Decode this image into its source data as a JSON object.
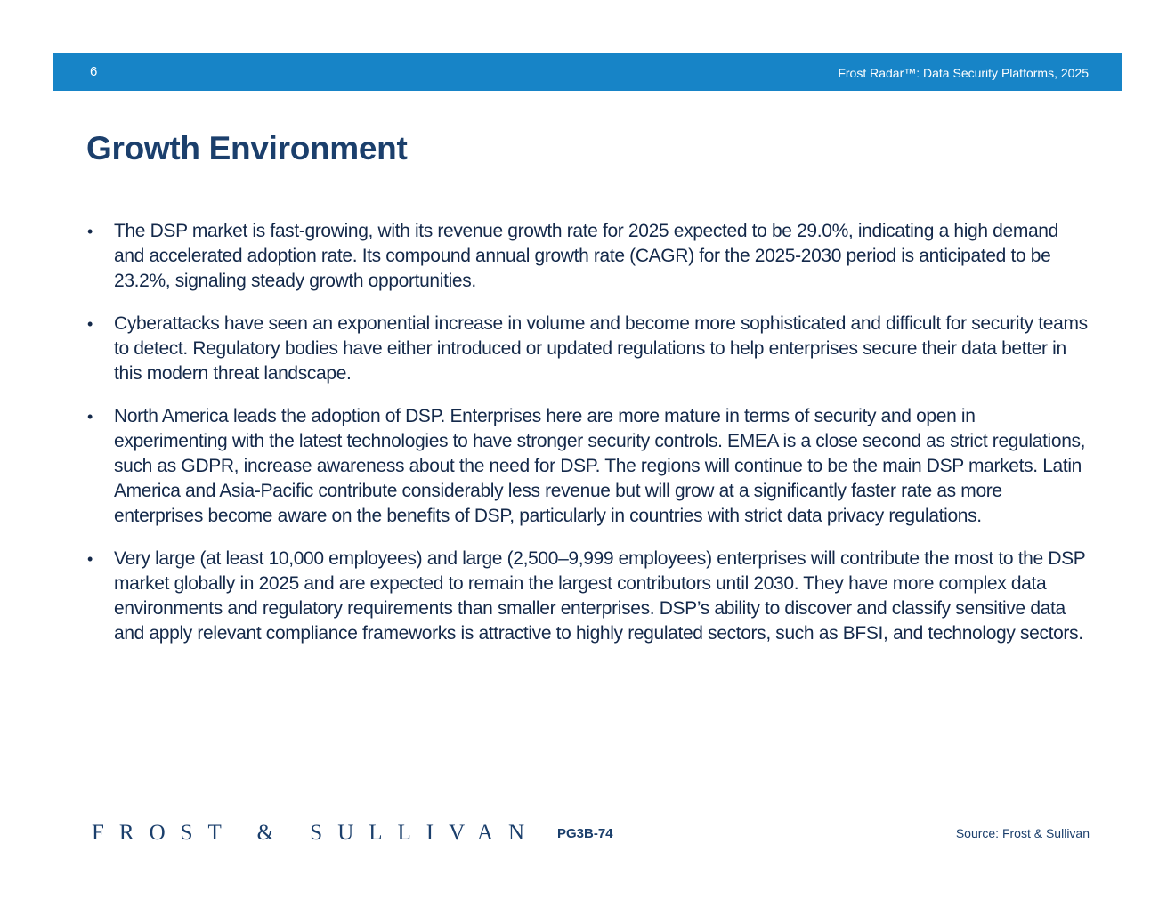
{
  "header": {
    "page_number": "6",
    "report_title": "Frost Radar™: Data Security Platforms, 2025",
    "bar_color": "#1784c7"
  },
  "main": {
    "heading": "Growth Environment",
    "bullet_symbol": "•",
    "bullets": [
      "The DSP market is fast-growing, with its revenue growth rate for 2025 expected to be 29.0%, indicating a high demand and accelerated adoption rate. Its compound annual growth rate (CAGR) for the 2025-2030 period is anticipated to be 23.2%, signaling steady growth opportunities.",
      "Cyberattacks have seen an exponential increase in volume and become more sophisticated and difficult for security teams to detect. Regulatory bodies have either introduced or updated regulations to help enterprises secure their data better in this modern threat landscape.",
      "North America leads the adoption of DSP. Enterprises here are more mature in terms of security and open in experimenting with the latest technologies to have stronger security controls. EMEA is a close second as strict regulations, such as GDPR, increase awareness about the need for DSP. The regions will continue to be the main DSP markets. Latin America and Asia-Pacific contribute considerably less revenue but will grow at a significantly faster rate as more enterprises become aware on the benefits of DSP, particularly in countries with strict data privacy regulations.",
      "Very large (at least 10,000 employees) and large (2,500–9,999 employees) enterprises will contribute the most to the DSP market globally in 2025 and are expected to remain the largest contributors until 2030. They have more complex data environments and regulatory requirements than smaller enterprises. DSP’s ability to discover and classify sensitive data and apply relevant compliance frameworks is attractive to highly regulated sectors, such as BFSI, and technology sectors."
    ]
  },
  "footer": {
    "logo_text": "FROST & SULLIVAN",
    "code": "PG3B-74",
    "source": "Source: Frost & Sullivan"
  }
}
